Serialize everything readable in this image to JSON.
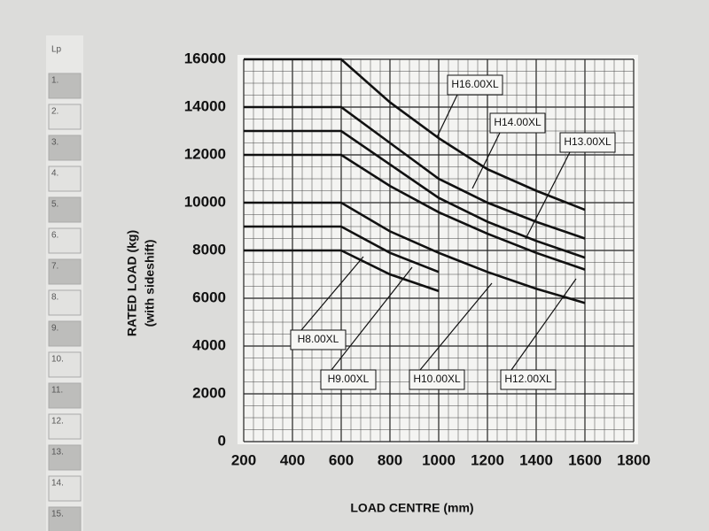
{
  "chart_data": {
    "type": "line",
    "x_label": "LOAD CENTRE (mm)",
    "y_label": "RATED LOAD (kg)",
    "y_label_sub": "(with sideshift)",
    "x": [
      200,
      600,
      800,
      1000,
      1200,
      1400,
      1600
    ],
    "series": [
      {
        "name": "H16.00XL",
        "color": "#111111",
        "values": [
          16000,
          16000,
          14200,
          12700,
          11400,
          10500,
          9700
        ]
      },
      {
        "name": "H14.00XL",
        "color": "#111111",
        "values": [
          14000,
          14000,
          12500,
          11000,
          10000,
          9200,
          8500
        ]
      },
      {
        "name": "H13.00XL",
        "color": "#111111",
        "values": [
          13000,
          13000,
          11600,
          10200,
          9200,
          8400,
          7700
        ]
      },
      {
        "name": "H12.00XL",
        "color": "#111111",
        "values": [
          12000,
          12000,
          10700,
          9600,
          8700,
          7900,
          7200
        ]
      },
      {
        "name": "H10.00XL",
        "color": "#111111",
        "values": [
          10000,
          10000,
          8800,
          7900,
          7100,
          6400,
          5800
        ]
      },
      {
        "name": "H9.00XL",
        "color": "#111111",
        "values": [
          9000,
          9000,
          7900,
          7100,
          null,
          null,
          null
        ]
      },
      {
        "name": "H8.00XL",
        "color": "#111111",
        "values": [
          8000,
          8000,
          7000,
          6300,
          null,
          null,
          null
        ]
      }
    ],
    "xlim": [
      200,
      1800
    ],
    "xticks": [
      200,
      400,
      600,
      800,
      1000,
      1200,
      1400,
      1600,
      1800
    ],
    "ylim": [
      0,
      16000
    ],
    "yticks": [
      0,
      2000,
      4000,
      6000,
      8000,
      10000,
      12000,
      14000,
      16000
    ],
    "grid": true
  },
  "side_column": [
    "Lp",
    "1.",
    "2.",
    "3.",
    "4.",
    "5.",
    "6.",
    "7.",
    "8.",
    "9.",
    "10.",
    "11.",
    "12.",
    "13.",
    "14.",
    "15."
  ]
}
